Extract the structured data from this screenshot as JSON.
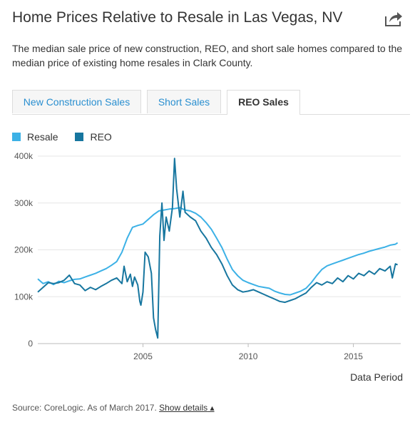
{
  "header": {
    "title": "Home Prices Relative to Resale in Las Vegas, NV",
    "description": "The median sale price of new construction, REO, and short sale homes compared to the median price of existing home resales in Clark County."
  },
  "tabs": [
    {
      "label": "New Construction Sales",
      "active": false
    },
    {
      "label": "Short Sales",
      "active": false
    },
    {
      "label": "REO Sales",
      "active": true
    }
  ],
  "icons": {
    "share": "share-icon"
  },
  "footer": {
    "source": "Source: CoreLogic. As of March 2017.",
    "show_details": "Show details",
    "show_details_icon": "▴"
  },
  "chart_data": {
    "type": "line",
    "xlabel": "Data Period",
    "ylabel": "",
    "xlim": [
      2000.0,
      2017.25
    ],
    "ylim": [
      0,
      400000
    ],
    "grid": true,
    "legend_position": "top-left",
    "yticks": [
      {
        "value": 0,
        "label": "0"
      },
      {
        "value": 100000,
        "label": "100k"
      },
      {
        "value": 200000,
        "label": "200k"
      },
      {
        "value": 300000,
        "label": "300k"
      },
      {
        "value": 400000,
        "label": "400k"
      }
    ],
    "xticks": [
      {
        "value": 2005,
        "label": "2005"
      },
      {
        "value": 2010,
        "label": "2010"
      },
      {
        "value": 2015,
        "label": "2015"
      }
    ],
    "series": [
      {
        "name": "Resale",
        "color": "#3cb1e6",
        "points": [
          [
            2000.0,
            138000
          ],
          [
            2000.25,
            128000
          ],
          [
            2000.5,
            132000
          ],
          [
            2000.75,
            126000
          ],
          [
            2001.0,
            133000
          ],
          [
            2001.25,
            130000
          ],
          [
            2001.5,
            134000
          ],
          [
            2001.75,
            137000
          ],
          [
            2002.0,
            138000
          ],
          [
            2002.25,
            142000
          ],
          [
            2002.5,
            146000
          ],
          [
            2002.75,
            150000
          ],
          [
            2003.0,
            155000
          ],
          [
            2003.25,
            160000
          ],
          [
            2003.5,
            167000
          ],
          [
            2003.75,
            175000
          ],
          [
            2004.0,
            195000
          ],
          [
            2004.25,
            225000
          ],
          [
            2004.5,
            248000
          ],
          [
            2004.75,
            252000
          ],
          [
            2005.0,
            255000
          ],
          [
            2005.25,
            265000
          ],
          [
            2005.5,
            275000
          ],
          [
            2005.75,
            283000
          ],
          [
            2006.0,
            285000
          ],
          [
            2006.25,
            287000
          ],
          [
            2006.5,
            288000
          ],
          [
            2006.75,
            290000
          ],
          [
            2007.0,
            285000
          ],
          [
            2007.25,
            283000
          ],
          [
            2007.5,
            278000
          ],
          [
            2007.75,
            270000
          ],
          [
            2008.0,
            258000
          ],
          [
            2008.25,
            244000
          ],
          [
            2008.5,
            225000
          ],
          [
            2008.75,
            205000
          ],
          [
            2009.0,
            180000
          ],
          [
            2009.25,
            158000
          ],
          [
            2009.5,
            145000
          ],
          [
            2009.75,
            135000
          ],
          [
            2010.0,
            130000
          ],
          [
            2010.25,
            126000
          ],
          [
            2010.5,
            122000
          ],
          [
            2010.75,
            120000
          ],
          [
            2011.0,
            118000
          ],
          [
            2011.25,
            112000
          ],
          [
            2011.5,
            108000
          ],
          [
            2011.75,
            105000
          ],
          [
            2012.0,
            104000
          ],
          [
            2012.25,
            108000
          ],
          [
            2012.5,
            112000
          ],
          [
            2012.75,
            118000
          ],
          [
            2013.0,
            130000
          ],
          [
            2013.25,
            145000
          ],
          [
            2013.5,
            158000
          ],
          [
            2013.75,
            166000
          ],
          [
            2014.0,
            170000
          ],
          [
            2014.25,
            174000
          ],
          [
            2014.5,
            178000
          ],
          [
            2014.75,
            182000
          ],
          [
            2015.0,
            186000
          ],
          [
            2015.25,
            190000
          ],
          [
            2015.5,
            193000
          ],
          [
            2015.75,
            197000
          ],
          [
            2016.0,
            200000
          ],
          [
            2016.25,
            203000
          ],
          [
            2016.5,
            206000
          ],
          [
            2016.75,
            210000
          ],
          [
            2017.0,
            212000
          ],
          [
            2017.1,
            215000
          ]
        ]
      },
      {
        "name": "REO",
        "color": "#17769f",
        "points": [
          [
            2000.0,
            110000
          ],
          [
            2000.25,
            120000
          ],
          [
            2000.5,
            130000
          ],
          [
            2000.75,
            128000
          ],
          [
            2001.0,
            130000
          ],
          [
            2001.25,
            135000
          ],
          [
            2001.5,
            146000
          ],
          [
            2001.75,
            128000
          ],
          [
            2002.0,
            125000
          ],
          [
            2002.25,
            113000
          ],
          [
            2002.5,
            120000
          ],
          [
            2002.75,
            115000
          ],
          [
            2003.0,
            122000
          ],
          [
            2003.25,
            128000
          ],
          [
            2003.5,
            135000
          ],
          [
            2003.75,
            140000
          ],
          [
            2004.0,
            128000
          ],
          [
            2004.1,
            165000
          ],
          [
            2004.25,
            132000
          ],
          [
            2004.4,
            148000
          ],
          [
            2004.5,
            122000
          ],
          [
            2004.6,
            142000
          ],
          [
            2004.75,
            125000
          ],
          [
            2004.85,
            90000
          ],
          [
            2004.9,
            82000
          ],
          [
            2005.0,
            110000
          ],
          [
            2005.1,
            195000
          ],
          [
            2005.25,
            185000
          ],
          [
            2005.4,
            150000
          ],
          [
            2005.5,
            55000
          ],
          [
            2005.6,
            30000
          ],
          [
            2005.7,
            12000
          ],
          [
            2005.8,
            230000
          ],
          [
            2005.9,
            300000
          ],
          [
            2006.0,
            220000
          ],
          [
            2006.1,
            270000
          ],
          [
            2006.25,
            240000
          ],
          [
            2006.4,
            290000
          ],
          [
            2006.5,
            395000
          ],
          [
            2006.6,
            330000
          ],
          [
            2006.75,
            270000
          ],
          [
            2006.9,
            325000
          ],
          [
            2007.0,
            280000
          ],
          [
            2007.25,
            270000
          ],
          [
            2007.5,
            262000
          ],
          [
            2007.75,
            240000
          ],
          [
            2008.0,
            225000
          ],
          [
            2008.25,
            205000
          ],
          [
            2008.5,
            190000
          ],
          [
            2008.75,
            170000
          ],
          [
            2009.0,
            145000
          ],
          [
            2009.25,
            125000
          ],
          [
            2009.5,
            115000
          ],
          [
            2009.75,
            110000
          ],
          [
            2010.0,
            112000
          ],
          [
            2010.25,
            115000
          ],
          [
            2010.5,
            110000
          ],
          [
            2010.75,
            105000
          ],
          [
            2011.0,
            100000
          ],
          [
            2011.25,
            95000
          ],
          [
            2011.5,
            90000
          ],
          [
            2011.75,
            88000
          ],
          [
            2012.0,
            92000
          ],
          [
            2012.25,
            96000
          ],
          [
            2012.5,
            102000
          ],
          [
            2012.75,
            108000
          ],
          [
            2013.0,
            120000
          ],
          [
            2013.25,
            130000
          ],
          [
            2013.5,
            125000
          ],
          [
            2013.75,
            132000
          ],
          [
            2014.0,
            128000
          ],
          [
            2014.25,
            140000
          ],
          [
            2014.5,
            132000
          ],
          [
            2014.75,
            145000
          ],
          [
            2015.0,
            138000
          ],
          [
            2015.25,
            150000
          ],
          [
            2015.5,
            145000
          ],
          [
            2015.75,
            155000
          ],
          [
            2016.0,
            148000
          ],
          [
            2016.25,
            160000
          ],
          [
            2016.5,
            155000
          ],
          [
            2016.75,
            165000
          ],
          [
            2016.85,
            140000
          ],
          [
            2017.0,
            170000
          ],
          [
            2017.1,
            168000
          ]
        ]
      }
    ]
  }
}
